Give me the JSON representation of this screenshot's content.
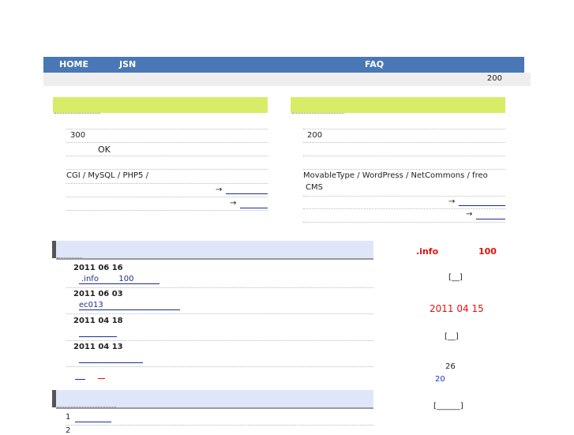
{
  "nav": {
    "home": "HOME",
    "jsn": "JSN",
    "faq": "FAQ"
  },
  "infobar": {
    "count": "200"
  },
  "left_box": {
    "line1": "300",
    "line2": "OK",
    "line3": "CGI / MySQL / PHP5 /",
    "arrow1": "→",
    "arrow2": "→"
  },
  "right_box": {
    "line1": "200",
    "line2": "MovableType / WordPress / NetCommons  / freo",
    "line3": "CMS",
    "arrow1": "→",
    "arrow2": "→"
  },
  "news": {
    "items": [
      {
        "date": "2011  06  16",
        "link": ".info        100"
      },
      {
        "date": "2011  06  03",
        "link": "ec013"
      },
      {
        "date": "2011  04  18",
        "link": ""
      },
      {
        "date": "2011  04  13",
        "link": ""
      }
    ]
  },
  "list2": {
    "item1": "1",
    "item2": "2"
  },
  "sidebar": {
    "promo_left": ".info",
    "promo_right": "100",
    "bracket1": "[__]",
    "date": "2011 04 15",
    "bracket2": "[__]",
    "num1": "26",
    "num2": "20",
    "bracket3": "[______]"
  }
}
